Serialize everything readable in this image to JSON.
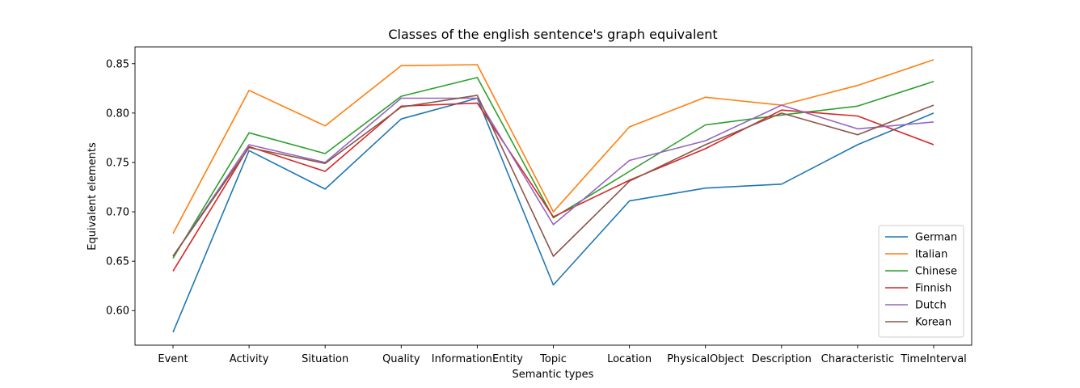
{
  "chart_data": {
    "type": "line",
    "title": "Classes of the english sentence's graph equivalent",
    "xlabel": "Semantic types",
    "ylabel": "Equivalent elements",
    "categories": [
      "Event",
      "Activity",
      "Situation",
      "Quality",
      "InformationEntity",
      "Topic",
      "Location",
      "PhysicalObject",
      "Description",
      "Characteristic",
      "TimeInterval"
    ],
    "ylim": [
      0.565,
      0.867
    ],
    "yticks": [
      "0.60",
      "0.65",
      "0.70",
      "0.75",
      "0.80",
      "0.85"
    ],
    "grid": false,
    "legend_position": "lower-right",
    "series": [
      {
        "name": "German",
        "color": "#1f77b4",
        "values": [
          0.578,
          0.762,
          0.723,
          0.794,
          0.815,
          0.626,
          0.711,
          0.724,
          0.728,
          0.768,
          0.8
        ]
      },
      {
        "name": "Italian",
        "color": "#ff7f0e",
        "values": [
          0.678,
          0.823,
          0.787,
          0.848,
          0.849,
          0.7,
          0.786,
          0.816,
          0.808,
          0.828,
          0.854
        ]
      },
      {
        "name": "Chinese",
        "color": "#2ca02c",
        "values": [
          0.653,
          0.78,
          0.759,
          0.817,
          0.836,
          0.694,
          0.741,
          0.788,
          0.798,
          0.807,
          0.832
        ]
      },
      {
        "name": "Finnish",
        "color": "#d62728",
        "values": [
          0.64,
          0.766,
          0.741,
          0.807,
          0.81,
          0.695,
          0.732,
          0.764,
          0.803,
          0.797,
          0.768
        ]
      },
      {
        "name": "Dutch",
        "color": "#9467bd",
        "values": [
          0.655,
          0.768,
          0.75,
          0.815,
          0.815,
          0.687,
          0.752,
          0.772,
          0.808,
          0.784,
          0.791
        ]
      },
      {
        "name": "Korean",
        "color": "#8c564b",
        "values": [
          0.655,
          0.765,
          0.749,
          0.806,
          0.818,
          0.655,
          0.731,
          0.768,
          0.8,
          0.778,
          0.808
        ]
      }
    ]
  }
}
